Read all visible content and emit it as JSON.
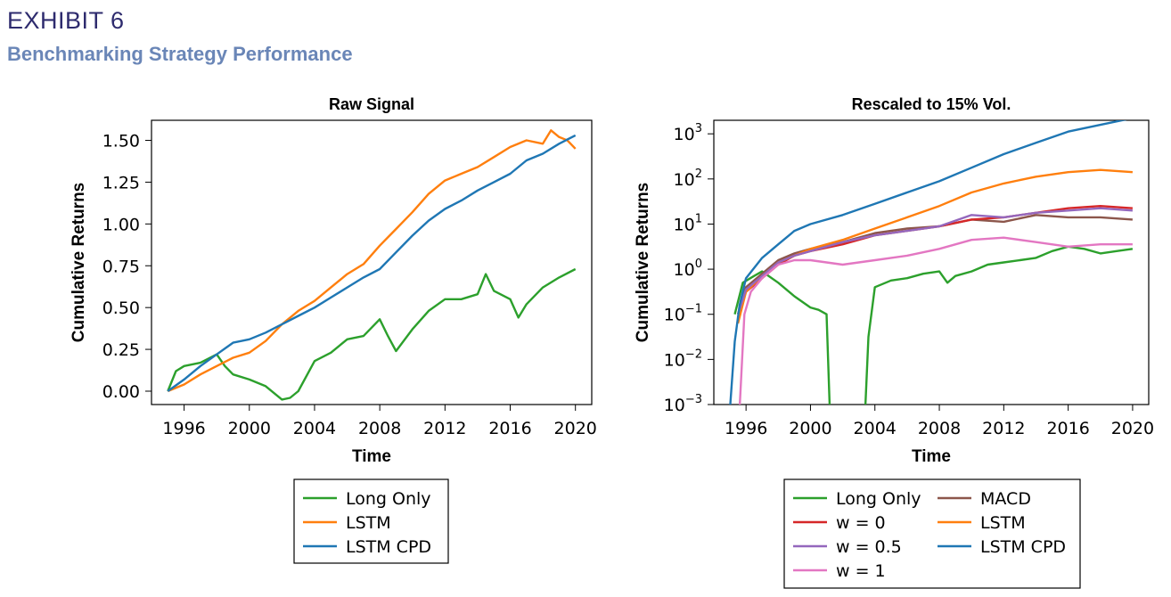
{
  "header": {
    "exhibit": "EXHIBIT 6",
    "subtitle": "Benchmarking Strategy Performance"
  },
  "chart_data": [
    {
      "type": "line",
      "title": "Raw Signal",
      "xlabel": "Time",
      "ylabel": "Cumulative Returns",
      "xlim": [
        1994,
        2021
      ],
      "ylim": [
        -0.08,
        1.62
      ],
      "xticks": [
        1996,
        2000,
        2004,
        2008,
        2012,
        2016,
        2020
      ],
      "xtick_labels": [
        "1996",
        "2000",
        "2004",
        "2008",
        "2012",
        "2016",
        "2020"
      ],
      "yticks": [
        0,
        0.25,
        0.5,
        0.75,
        1.0,
        1.25,
        1.5
      ],
      "ytick_labels": [
        "0.00",
        "0.25",
        "0.50",
        "0.75",
        "1.00",
        "1.25",
        "1.50"
      ],
      "legend_position": "below",
      "series": [
        {
          "name": "Long Only",
          "color": "#2ca02c",
          "x": [
            1995,
            1995.5,
            1996,
            1997,
            1998,
            1998.5,
            1999,
            2000,
            2001,
            2002,
            2002.5,
            2003,
            2004,
            2005,
            2006,
            2007,
            2008,
            2008.5,
            2009,
            2010,
            2011,
            2012,
            2013,
            2014,
            2014.5,
            2015,
            2016,
            2016.5,
            2017,
            2018,
            2019,
            2020
          ],
          "y": [
            0,
            0.12,
            0.15,
            0.17,
            0.22,
            0.15,
            0.1,
            0.07,
            0.03,
            -0.05,
            -0.04,
            0,
            0.18,
            0.23,
            0.31,
            0.33,
            0.43,
            0.33,
            0.24,
            0.37,
            0.48,
            0.55,
            0.55,
            0.58,
            0.7,
            0.6,
            0.55,
            0.44,
            0.52,
            0.62,
            0.68,
            0.73
          ]
        },
        {
          "name": "LSTM",
          "color": "#ff7f0e",
          "x": [
            1995,
            1996,
            1997,
            1998,
            1999,
            2000,
            2001,
            2002,
            2003,
            2004,
            2005,
            2006,
            2007,
            2008,
            2009,
            2010,
            2011,
            2012,
            2013,
            2014,
            2015,
            2016,
            2017,
            2018,
            2018.5,
            2019,
            2019.5,
            2020
          ],
          "y": [
            0,
            0.04,
            0.1,
            0.15,
            0.2,
            0.23,
            0.3,
            0.4,
            0.48,
            0.54,
            0.62,
            0.7,
            0.76,
            0.87,
            0.97,
            1.07,
            1.18,
            1.26,
            1.3,
            1.34,
            1.4,
            1.46,
            1.5,
            1.48,
            1.56,
            1.52,
            1.5,
            1.45
          ]
        },
        {
          "name": "LSTM CPD",
          "color": "#1f77b4",
          "x": [
            1995,
            1996,
            1997,
            1998,
            1999,
            2000,
            2001,
            2002,
            2003,
            2004,
            2005,
            2006,
            2007,
            2008,
            2009,
            2010,
            2011,
            2012,
            2013,
            2014,
            2015,
            2016,
            2017,
            2018,
            2019,
            2020
          ],
          "y": [
            0,
            0.07,
            0.15,
            0.22,
            0.29,
            0.31,
            0.35,
            0.4,
            0.45,
            0.5,
            0.56,
            0.62,
            0.68,
            0.73,
            0.83,
            0.93,
            1.02,
            1.09,
            1.14,
            1.2,
            1.25,
            1.3,
            1.38,
            1.42,
            1.48,
            1.53
          ]
        }
      ]
    },
    {
      "type": "line",
      "title": "Rescaled to 15% Vol.",
      "xlabel": "Time",
      "ylabel": "Cumulative Returns",
      "y_scale": "log",
      "xlim": [
        1994,
        2021
      ],
      "ylim_log10": [
        -3,
        3.3
      ],
      "xticks": [
        1996,
        2000,
        2004,
        2008,
        2012,
        2016,
        2020
      ],
      "xtick_labels": [
        "1996",
        "2000",
        "2004",
        "2008",
        "2012",
        "2016",
        "2020"
      ],
      "yticks_log10": [
        -3,
        -2,
        -1,
        0,
        1,
        2,
        3
      ],
      "ytick_bases": [
        "10",
        "10",
        "10",
        "10",
        "10",
        "10",
        "10"
      ],
      "ytick_exponents": [
        "−3",
        "−2",
        "−1",
        "0",
        "1",
        "2",
        "3"
      ],
      "legend_position": "below",
      "series": [
        {
          "name": "Long Only",
          "color": "#2ca02c",
          "x": [
            1995.3,
            1995.8,
            1996.5,
            1997,
            1998,
            1999,
            2000,
            2000.5,
            2001,
            2001.2,
            null,
            2003.4,
            2003.6,
            2004,
            2005,
            2006,
            2007,
            2008,
            2008.5,
            2009,
            2010,
            2011,
            2012,
            2013,
            2014,
            2015,
            2016,
            2017,
            2018,
            2019,
            2020
          ],
          "log10_y": [
            -1,
            -0.3,
            -0.15,
            -0.05,
            -0.3,
            -0.6,
            -0.85,
            -0.9,
            -1.0,
            -3.1,
            null,
            -3.1,
            -1.5,
            -0.4,
            -0.25,
            -0.2,
            -0.1,
            -0.05,
            -0.3,
            -0.15,
            -0.05,
            0.1,
            0.15,
            0.2,
            0.25,
            0.4,
            0.5,
            0.45,
            0.35,
            0.4,
            0.45
          ]
        },
        {
          "name": "MACD",
          "color": "#8c564b",
          "x": [
            1995.5,
            1996,
            1997,
            1998,
            1999,
            2000,
            2002,
            2004,
            2006,
            2008,
            2010,
            2012,
            2014,
            2016,
            2018,
            2020
          ],
          "log10_y": [
            -1,
            -0.4,
            -0.1,
            0.2,
            0.35,
            0.45,
            0.6,
            0.8,
            0.9,
            0.95,
            1.1,
            1.05,
            1.2,
            1.15,
            1.15,
            1.1
          ]
        },
        {
          "name": "w = 0",
          "color": "#d62728",
          "x": [
            1995.5,
            1996,
            1997,
            1998,
            1999,
            2000,
            2002,
            2004,
            2006,
            2008,
            2010,
            2012,
            2014,
            2016,
            2018,
            2020
          ],
          "log10_y": [
            -1,
            -0.5,
            -0.2,
            0.1,
            0.3,
            0.4,
            0.55,
            0.75,
            0.85,
            0.95,
            1.1,
            1.15,
            1.25,
            1.35,
            1.4,
            1.35
          ]
        },
        {
          "name": "LSTM",
          "color": "#ff7f0e",
          "x": [
            1995.5,
            1996,
            1997,
            1998,
            1999,
            2000,
            2002,
            2004,
            2006,
            2008,
            2010,
            2012,
            2014,
            2016,
            2018,
            2020
          ],
          "log10_y": [
            -1.2,
            -0.5,
            -0.15,
            0.15,
            0.3,
            0.45,
            0.65,
            0.9,
            1.15,
            1.4,
            1.7,
            1.9,
            2.05,
            2.15,
            2.2,
            2.15
          ]
        },
        {
          "name": "w = 0.5",
          "color": "#9467bd",
          "x": [
            1995.5,
            1996,
            1997,
            1998,
            1999,
            2000,
            2002,
            2004,
            2006,
            2008,
            2010,
            2012,
            2014,
            2016,
            2018,
            2020
          ],
          "log10_y": [
            -1,
            -0.45,
            -0.15,
            0.15,
            0.3,
            0.4,
            0.6,
            0.75,
            0.85,
            0.95,
            1.2,
            1.15,
            1.25,
            1.3,
            1.35,
            1.3
          ]
        },
        {
          "name": "LSTM CPD",
          "color": "#1f77b4",
          "x": [
            1995,
            1995.3,
            1995.6,
            1996,
            1997,
            1998,
            1999,
            2000,
            2002,
            2004,
            2006,
            2008,
            2010,
            2012,
            2014,
            2016,
            2018,
            2020
          ],
          "log10_y": [
            -3.1,
            -1.6,
            -0.8,
            -0.2,
            0.25,
            0.55,
            0.85,
            1.0,
            1.2,
            1.45,
            1.7,
            1.95,
            2.25,
            2.55,
            2.8,
            3.05,
            3.2,
            3.35
          ]
        },
        {
          "name": "w = 1",
          "color": "#e377c2",
          "x": [
            1995.6,
            1995.9,
            1996.3,
            1997,
            1998,
            1999,
            2000,
            2002,
            2004,
            2006,
            2008,
            2010,
            2012,
            2014,
            2016,
            2018,
            2020
          ],
          "log10_y": [
            -3.1,
            -1.0,
            -0.5,
            -0.2,
            0.1,
            0.2,
            0.2,
            0.1,
            0.2,
            0.3,
            0.45,
            0.65,
            0.7,
            0.6,
            0.5,
            0.55,
            0.55
          ]
        }
      ]
    }
  ]
}
